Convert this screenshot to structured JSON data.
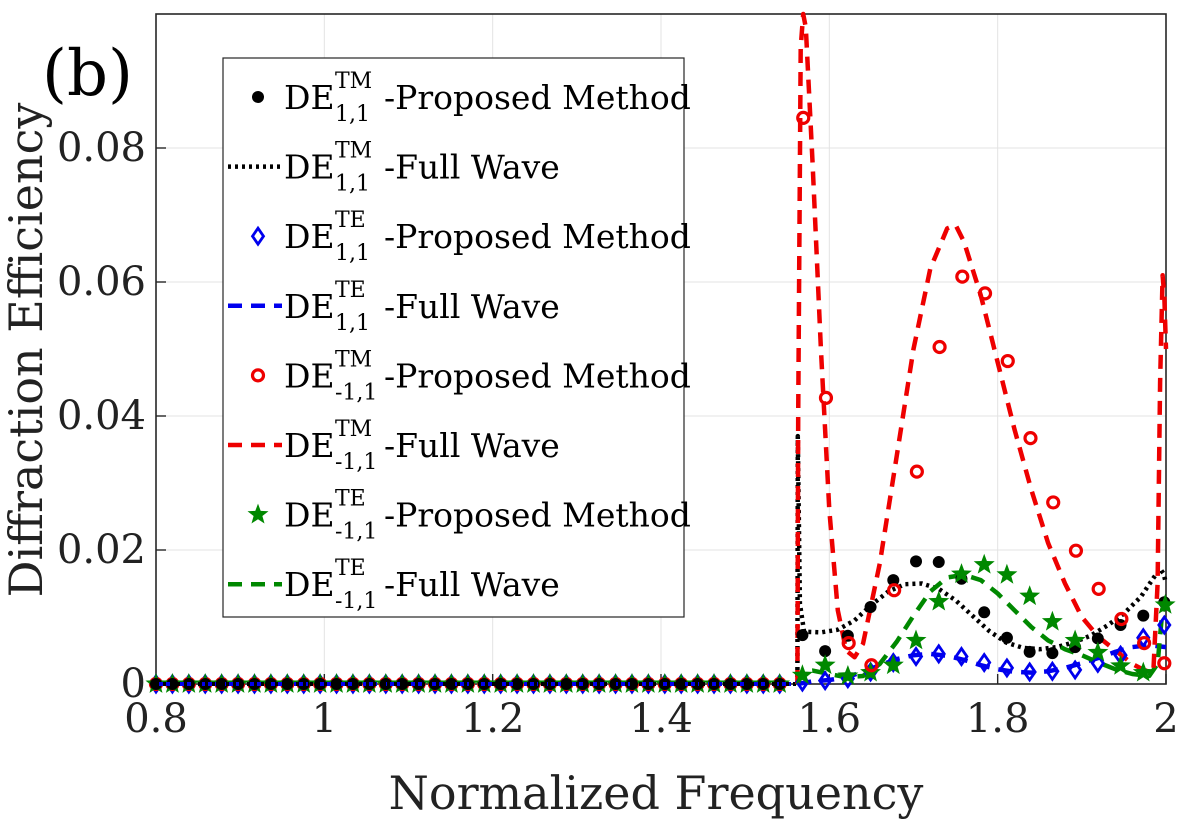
{
  "panel_label": "(b)",
  "chart_data": {
    "type": "line",
    "xlabel": "Normalized Frequency",
    "ylabel": "Diffraction Efficiency",
    "xlim": [
      0.8,
      2.0
    ],
    "ylim": [
      0,
      0.1
    ],
    "xticks": [
      0.8,
      1,
      1.2,
      1.4,
      1.6,
      1.8,
      2
    ],
    "xtick_labels": [
      "0.8",
      "1",
      "1.2",
      "1.4",
      "1.6",
      "1.8",
      "2"
    ],
    "yticks": [
      0,
      0.02,
      0.04,
      0.06,
      0.08
    ],
    "ytick_labels": [
      "0",
      "0.02",
      "0.04",
      "0.06",
      "0.08"
    ],
    "grid": true,
    "legend_position": "upper-left",
    "series": [
      {
        "name": "DE TM 1,1 - Proposed Method",
        "legend": {
          "base": "DE",
          "sup": "TM",
          "sub": "1,1",
          "suffix": "-Proposed Method"
        },
        "color": "#000000",
        "style": "markers",
        "marker": "dot",
        "x": [
          1.568,
          1.595,
          1.622,
          1.649,
          1.676,
          1.703,
          1.73,
          1.757,
          1.784,
          1.811,
          1.838,
          1.865,
          1.892,
          1.919,
          1.946,
          1.973,
          1.998
        ],
        "y": [
          0.0073,
          0.0049,
          0.0072,
          0.0115,
          0.0155,
          0.0183,
          0.0182,
          0.0157,
          0.0107,
          0.0069,
          0.0048,
          0.0046,
          0.0055,
          0.0068,
          0.0088,
          0.0102,
          0.0122
        ]
      },
      {
        "name": "DE TM 1,1 - Full Wave",
        "legend": {
          "base": "DE",
          "sup": "TM",
          "sub": "1,1",
          "suffix": "-Full Wave"
        },
        "color": "#000000",
        "style": "dotted",
        "x": [
          1.562,
          1.5625,
          1.565,
          1.57,
          1.59,
          1.61,
          1.63,
          1.65,
          1.67,
          1.69,
          1.71,
          1.73,
          1.75,
          1.77,
          1.79,
          1.81,
          1.83,
          1.85,
          1.87,
          1.89,
          1.91,
          1.93,
          1.95,
          1.97,
          1.985,
          1.993,
          1.997,
          2.0
        ],
        "y": [
          0.0,
          0.037,
          0.012,
          0.0078,
          0.0077,
          0.0081,
          0.0095,
          0.0118,
          0.0138,
          0.0149,
          0.015,
          0.0142,
          0.0125,
          0.0102,
          0.0079,
          0.0062,
          0.0054,
          0.0052,
          0.0055,
          0.0062,
          0.0072,
          0.0087,
          0.0105,
          0.013,
          0.0158,
          0.0172,
          0.0165,
          0.015
        ]
      },
      {
        "name": "DE TE 1,1 - Proposed Method",
        "legend": {
          "base": "DE",
          "sup": "TE",
          "sub": "1,1",
          "suffix": "-Proposed Method"
        },
        "color": "#0000ee",
        "style": "markers",
        "marker": "diamond",
        "x": [
          1.568,
          1.595,
          1.622,
          1.649,
          1.676,
          1.703,
          1.73,
          1.757,
          1.784,
          1.811,
          1.838,
          1.865,
          1.892,
          1.919,
          1.946,
          1.973,
          1.998
        ],
        "y": [
          0.0003,
          0.0005,
          0.0008,
          0.0018,
          0.0032,
          0.0041,
          0.0045,
          0.0041,
          0.0032,
          0.0024,
          0.0018,
          0.0019,
          0.0021,
          0.0031,
          0.0043,
          0.0069,
          0.0088
        ]
      },
      {
        "name": "DE TE 1,1 - Full Wave",
        "legend": {
          "base": "DE",
          "sup": "TE",
          "sub": "1,1",
          "suffix": "-Full Wave"
        },
        "color": "#0000ee",
        "style": "dashed",
        "x": [
          1.562,
          1.58,
          1.6,
          1.62,
          1.64,
          1.66,
          1.68,
          1.7,
          1.72,
          1.74,
          1.76,
          1.78,
          1.8,
          1.82,
          1.84,
          1.86,
          1.88,
          1.9,
          1.92,
          1.94,
          1.96,
          1.98,
          2.0
        ],
        "y": [
          0.0,
          0.0004,
          0.0006,
          0.001,
          0.0018,
          0.0028,
          0.0037,
          0.0043,
          0.0045,
          0.0042,
          0.0036,
          0.0028,
          0.0022,
          0.0018,
          0.0017,
          0.0019,
          0.0024,
          0.0031,
          0.0039,
          0.0048,
          0.0055,
          0.0058,
          0.0055
        ]
      },
      {
        "name": "DE TM -1,1 - Proposed Method",
        "legend": {
          "base": "DE",
          "sup": "TM",
          "sub": "-1,1",
          "suffix": "-Proposed Method"
        },
        "color": "#ee0000",
        "style": "markers",
        "marker": "circle",
        "x": [
          1.569,
          1.596,
          1.623,
          1.65,
          1.677,
          1.704,
          1.731,
          1.758,
          1.785,
          1.812,
          1.839,
          1.866,
          1.893,
          1.92,
          1.947,
          1.974,
          1.998
        ],
        "y": [
          0.0845,
          0.0427,
          0.0061,
          0.0028,
          0.014,
          0.0317,
          0.0503,
          0.0608,
          0.0583,
          0.0482,
          0.0367,
          0.0271,
          0.0199,
          0.0142,
          0.0097,
          0.0061,
          0.0031
        ]
      },
      {
        "name": "DE TM -1,1 - Full Wave",
        "legend": {
          "base": "DE",
          "sup": "TM",
          "sub": "-1,1",
          "suffix": "-Full Wave"
        },
        "color": "#ee0000",
        "style": "dashed",
        "x": [
          1.562,
          1.563,
          1.566,
          1.569,
          1.572,
          1.58,
          1.59,
          1.6,
          1.61,
          1.62,
          1.63,
          1.64,
          1.66,
          1.68,
          1.7,
          1.72,
          1.74,
          1.75,
          1.76,
          1.78,
          1.8,
          1.82,
          1.84,
          1.86,
          1.88,
          1.9,
          1.92,
          1.94,
          1.96,
          1.975,
          1.985,
          1.99,
          1.993,
          1.996,
          1.998,
          2.0
        ],
        "y": [
          0.0,
          0.04,
          0.095,
          0.1,
          0.098,
          0.078,
          0.05,
          0.026,
          0.011,
          0.005,
          0.004,
          0.006,
          0.018,
          0.034,
          0.05,
          0.062,
          0.068,
          0.0685,
          0.066,
          0.058,
          0.048,
          0.038,
          0.029,
          0.021,
          0.015,
          0.01,
          0.007,
          0.005,
          0.003,
          0.002,
          0.002,
          0.015,
          0.045,
          0.061,
          0.058,
          0.05
        ]
      },
      {
        "name": "DE TE -1,1 - Proposed Method",
        "legend": {
          "base": "DE",
          "sup": "TE",
          "sub": "-1,1",
          "suffix": "-Proposed Method"
        },
        "color": "#008800",
        "style": "markers",
        "marker": "star",
        "x": [
          1.568,
          1.595,
          1.622,
          1.649,
          1.676,
          1.703,
          1.73,
          1.757,
          1.784,
          1.811,
          1.838,
          1.865,
          1.892,
          1.919,
          1.946,
          1.973,
          1.999
        ],
        "y": [
          0.0013,
          0.0028,
          0.0012,
          0.0017,
          0.0028,
          0.0065,
          0.0123,
          0.0164,
          0.0178,
          0.0163,
          0.0131,
          0.0093,
          0.0065,
          0.0047,
          0.0027,
          0.0017,
          0.0118
        ]
      },
      {
        "name": "DE TE -1,1 - Full Wave",
        "legend": {
          "base": "DE",
          "sup": "TE",
          "sub": "-1,1",
          "suffix": "-Full Wave"
        },
        "color": "#008800",
        "style": "dashed",
        "x": [
          1.562,
          1.568,
          1.58,
          1.6,
          1.62,
          1.64,
          1.66,
          1.68,
          1.7,
          1.72,
          1.74,
          1.76,
          1.78,
          1.8,
          1.82,
          1.84,
          1.86,
          1.88,
          1.9,
          1.92,
          1.94,
          1.96,
          1.98,
          1.99,
          1.995,
          2.0
        ],
        "y": [
          0.0,
          0.0018,
          0.002,
          0.0015,
          0.001,
          0.0012,
          0.003,
          0.0063,
          0.0102,
          0.0138,
          0.0159,
          0.0163,
          0.0155,
          0.0135,
          0.011,
          0.0085,
          0.0065,
          0.0052,
          0.0043,
          0.0032,
          0.0022,
          0.0015,
          0.0012,
          0.003,
          0.01,
          0.013
        ]
      }
    ],
    "zero_band": {
      "x_start": 0.8,
      "x_end": 1.55,
      "spacing": 0.0195,
      "y": 0,
      "markers": [
        "diamond",
        "circle",
        "star",
        "dot"
      ]
    }
  }
}
